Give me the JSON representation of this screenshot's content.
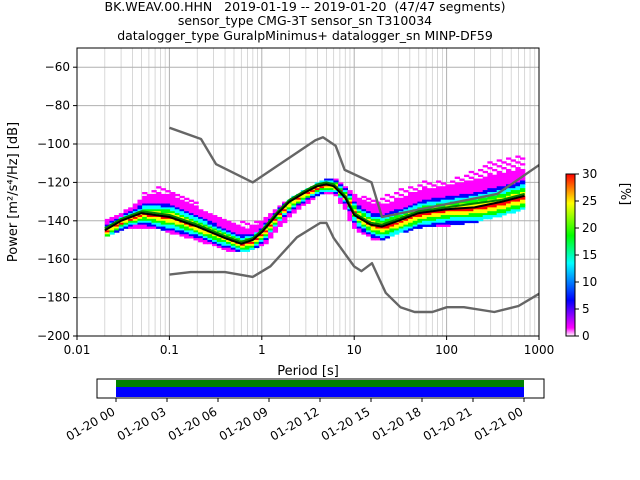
{
  "title_lines": [
    "BK.WEAV.00.HHN   2019-01-19 -- 2019-01-20  (47/47 segments)",
    "sensor_type CMG-3T sensor_sn T310034",
    "datalogger_type GuralpMinimus+ datalogger_sn MINP-DF59"
  ],
  "chart_data": {
    "type": "heatmap",
    "subtype": "probabilistic power spectral density",
    "xlabel": "Period [s]",
    "ylabel": "Power [m²/s⁴/Hz] [dB]",
    "x_scale": "log",
    "xlim": [
      0.01,
      1000
    ],
    "ylim": [
      -200,
      -50
    ],
    "x_tick_labels": [
      "0.01",
      "0.1",
      "1",
      "10",
      "100",
      "1000"
    ],
    "y_ticks": [
      -200,
      -180,
      -160,
      -140,
      -120,
      -100,
      -80,
      -60
    ],
    "grid": true,
    "colorbar": {
      "label": "[%]",
      "range": [
        0,
        30
      ],
      "ticks": [
        0,
        5,
        10,
        15,
        20,
        25,
        30
      ],
      "colors": [
        "#ffffff",
        "#ff00ff",
        "#0000ff",
        "#00ffff",
        "#00ff00",
        "#ffff00",
        "#ff0000"
      ]
    },
    "mean_curve": {
      "color": "#000000",
      "period": [
        0.02,
        0.03,
        0.05,
        0.1,
        0.2,
        0.4,
        0.6,
        0.8,
        1,
        1.5,
        2,
        3,
        4,
        5,
        6,
        8,
        10,
        15,
        20,
        30,
        50,
        100,
        200,
        400,
        700
      ],
      "db": [
        -145,
        -140,
        -136,
        -138,
        -143,
        -149,
        -152,
        -150,
        -146,
        -136,
        -130,
        -125,
        -122,
        -121,
        -122,
        -128,
        -137,
        -142,
        -143,
        -140,
        -136,
        -134,
        -133,
        -130,
        -127
      ]
    },
    "mode_curve": {
      "color": "#008000",
      "period": [
        0.02,
        0.03,
        0.05,
        0.1,
        0.2,
        0.4,
        0.6,
        0.8,
        1,
        1.5,
        2,
        3,
        4,
        5,
        6,
        8,
        10,
        15,
        20,
        30,
        50,
        100,
        200,
        400,
        700
      ],
      "db": [
        -144,
        -139,
        -135,
        -137,
        -142,
        -148,
        -151,
        -149,
        -145,
        -135,
        -129,
        -124,
        -121,
        -120,
        -121,
        -127,
        -136,
        -141,
        -142,
        -139,
        -135,
        -133,
        -131,
        -129,
        -126
      ]
    },
    "nhnm": {
      "color": "#666666",
      "period": [
        0.1,
        0.22,
        0.32,
        0.8,
        3.8,
        4.6,
        6.3,
        7.9,
        15.4,
        20,
        354.8,
        1000
      ],
      "db": [
        -91.5,
        -97.4,
        -110.5,
        -120,
        -98,
        -96.5,
        -101,
        -113.5,
        -120,
        -138,
        -126,
        -111
      ]
    },
    "nlnm": {
      "color": "#666666",
      "period": [
        0.1,
        0.17,
        0.4,
        0.8,
        1.24,
        2.4,
        4.3,
        5,
        6,
        10,
        12,
        15.6,
        21.9,
        31.6,
        45,
        70,
        101,
        154,
        328,
        600,
        1000
      ],
      "db": [
        -168,
        -166.7,
        -166.7,
        -169.2,
        -163.7,
        -148.6,
        -141.1,
        -141.1,
        -149,
        -163.8,
        -166.2,
        -162.1,
        -177.5,
        -185,
        -187.5,
        -187.5,
        -185,
        -185,
        -187.5,
        -184.4,
        -178
      ]
    },
    "psd_spread": {
      "period": [
        0.02,
        0.03,
        0.05,
        0.08,
        0.1,
        0.2,
        0.4,
        0.6,
        1,
        2,
        4,
        5,
        6,
        10,
        15,
        20,
        30,
        50,
        100,
        200,
        300,
        700
      ],
      "min_db": [
        -147,
        -144,
        -143,
        -144,
        -146,
        -150,
        -155,
        -156,
        -152,
        -136,
        -126,
        -125,
        -127,
        -145,
        -149,
        -149,
        -146,
        -143,
        -142,
        -140,
        -138,
        -133
      ],
      "max_db": [
        -139,
        -135,
        -125,
        -121,
        -123,
        -131,
        -139,
        -140,
        -138,
        -127,
        -119,
        -117,
        -118,
        -126,
        -128,
        -126,
        -123,
        -119,
        -118,
        -112,
        -108,
        -104
      ]
    },
    "timeline": {
      "tick_labels": [
        "01-20 00",
        "01-20 03",
        "01-20 06",
        "01-20 09",
        "01-20 12",
        "01-20 15",
        "01-20 18",
        "01-20 21",
        "01-21 00"
      ],
      "bands": [
        {
          "color": "#008000"
        },
        {
          "color": "#0000ff"
        }
      ]
    }
  }
}
